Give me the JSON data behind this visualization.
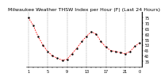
{
  "title": "Milwaukee Weather THSW Index per Hour (F) (Last 24 Hours)",
  "x_labels": [
    "1",
    "",
    "",
    "",
    "5",
    "",
    "",
    "",
    "9",
    "",
    "",
    "",
    "13",
    "",
    "",
    "",
    "17",
    "",
    "",
    "",
    "21",
    "",
    "",
    "0"
  ],
  "y_values": [
    75,
    68,
    58,
    50,
    44,
    40,
    38,
    36,
    37,
    42,
    47,
    53,
    58,
    62,
    60,
    53,
    48,
    45,
    44,
    43,
    42,
    44,
    49,
    52
  ],
  "ylim_min": 30,
  "ylim_max": 80,
  "yticks": [
    35,
    40,
    45,
    50,
    55,
    60,
    65,
    70,
    75
  ],
  "ytick_labels": [
    "35",
    "40",
    "45",
    "50",
    "55",
    "60",
    "65",
    "70",
    "75"
  ],
  "line_color": "#ff0000",
  "marker_color": "#000000",
  "bg_color": "#ffffff",
  "grid_color": "#888888",
  "title_fontsize": 4.5,
  "tick_fontsize": 3.5,
  "gridline_positions": [
    0,
    4,
    8,
    12,
    16,
    20
  ]
}
